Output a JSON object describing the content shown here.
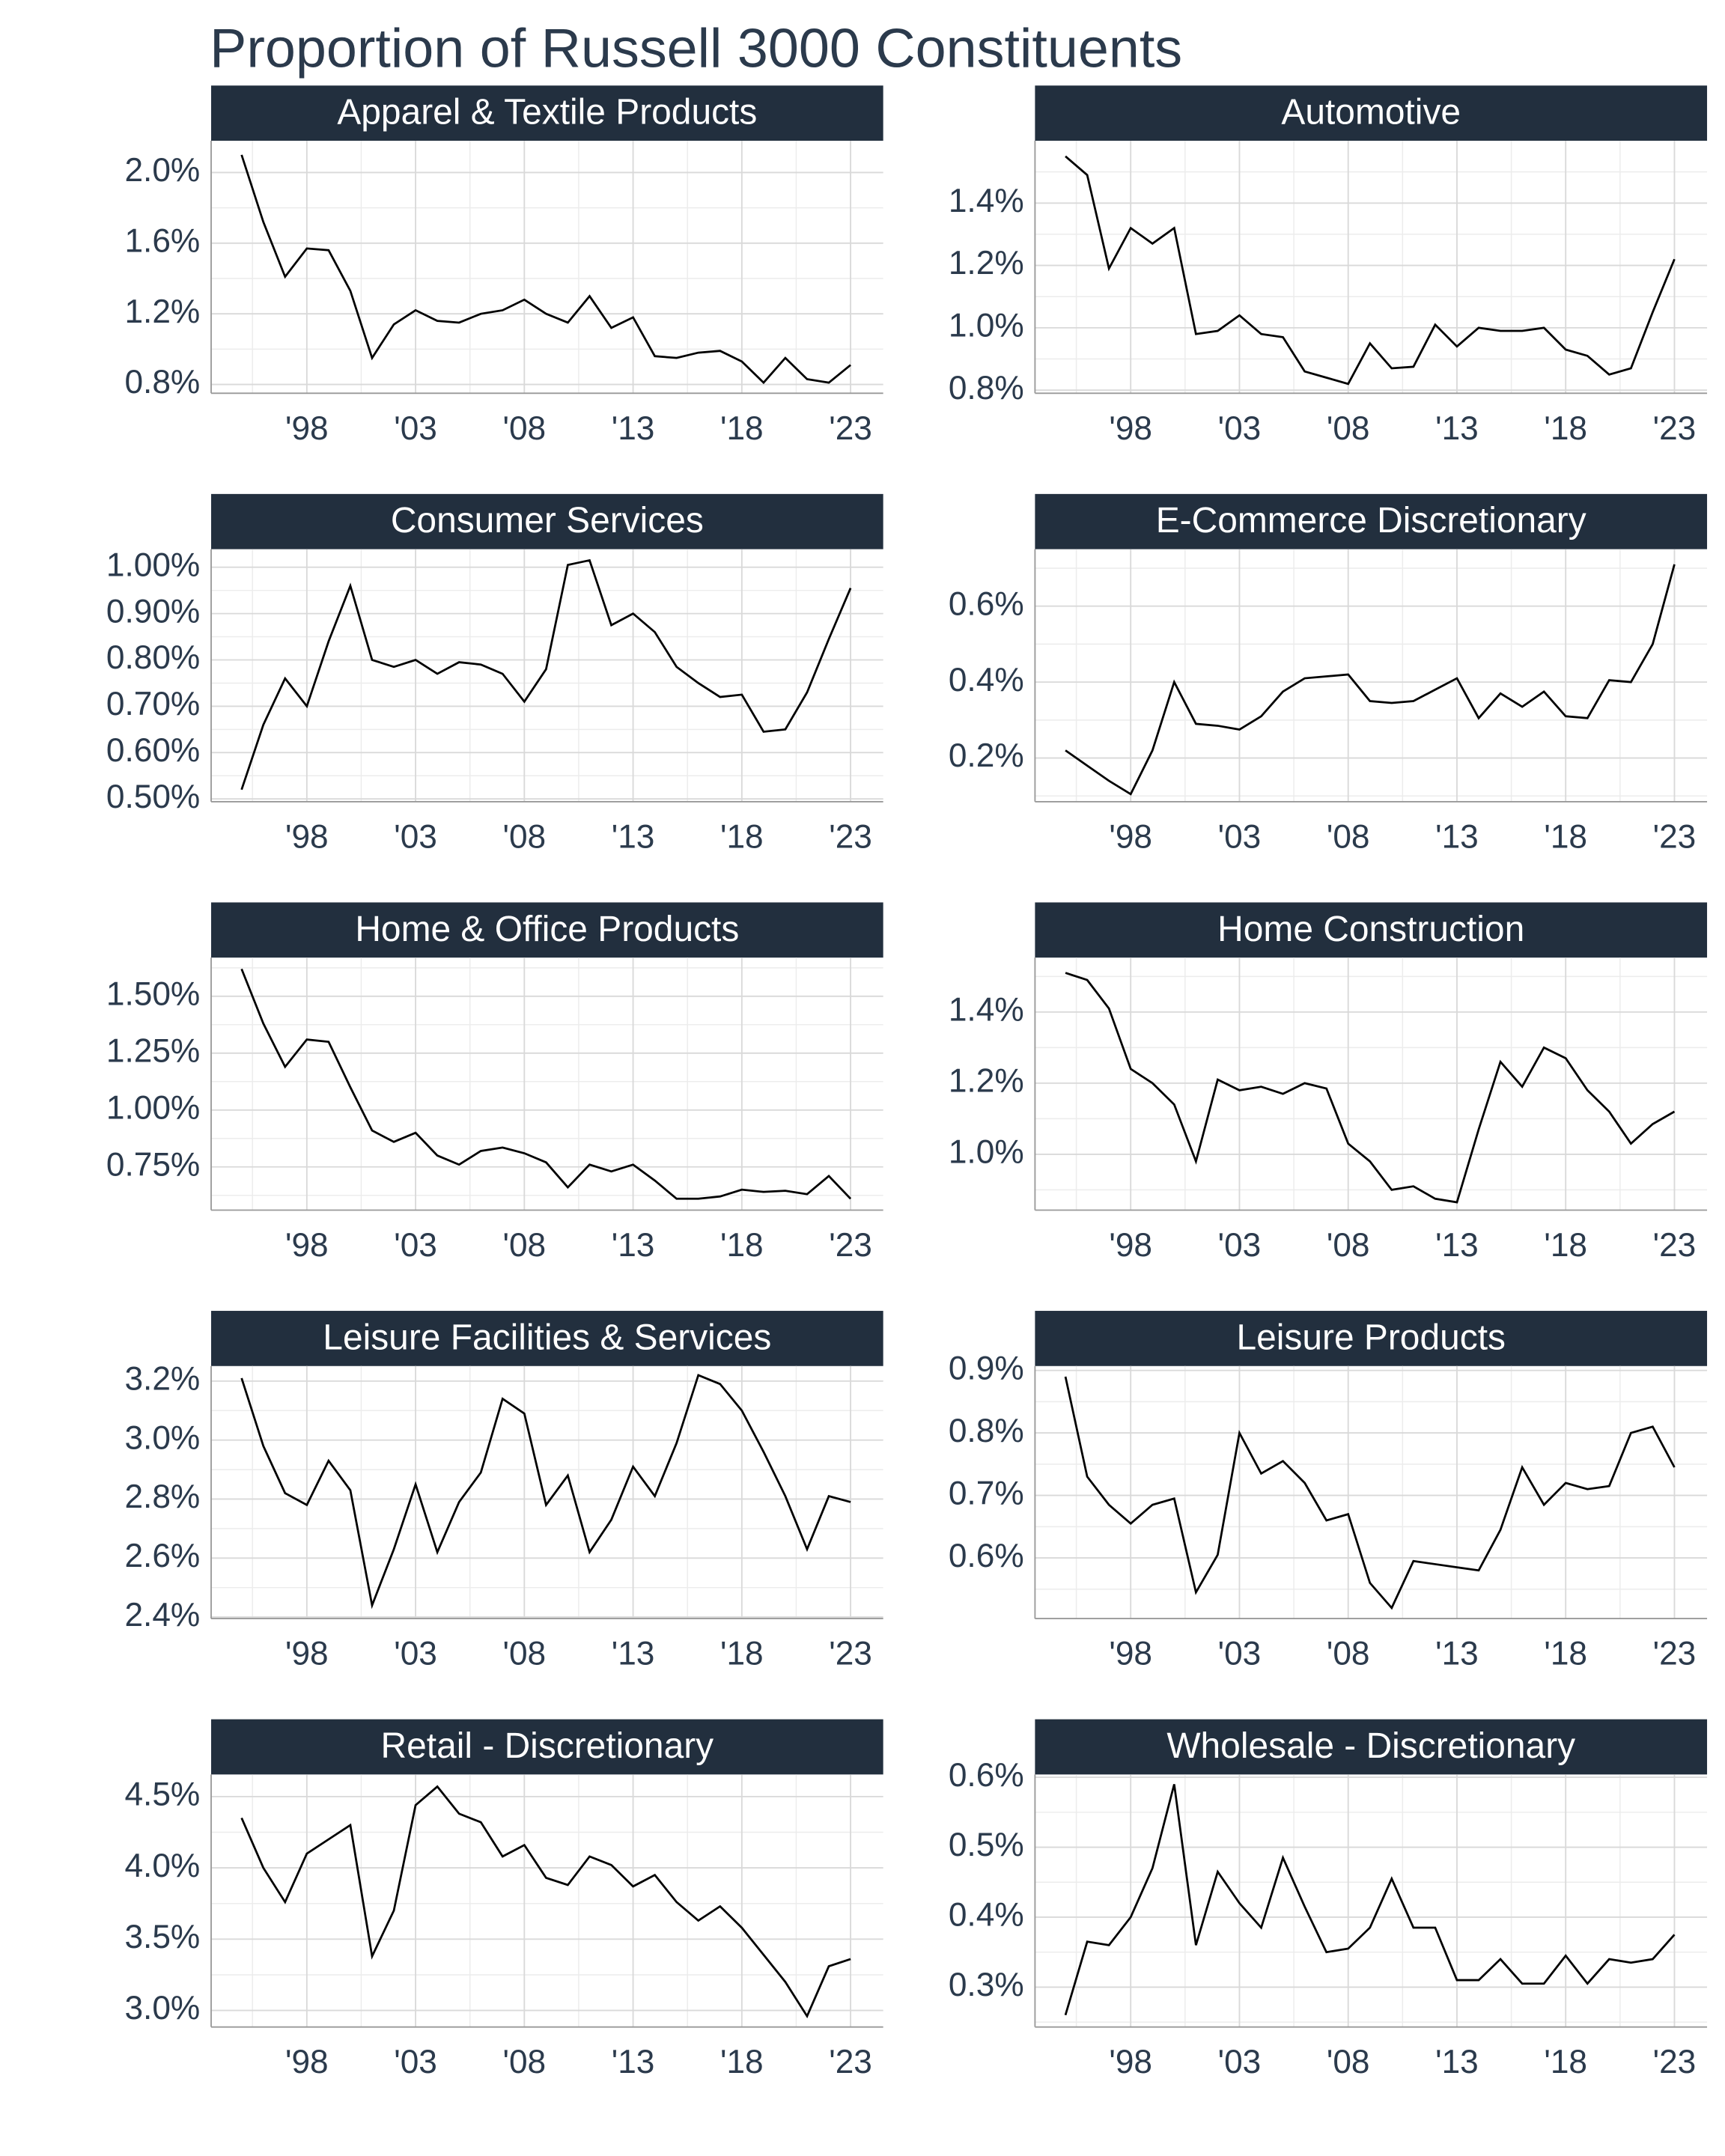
{
  "title": "Proportion of Russell 3000 Constituents",
  "chart_data": [
    {
      "type": "line",
      "title": "Apparel & Textile Products",
      "color": "#000000",
      "x": [
        1995,
        1996,
        1997,
        1998,
        1999,
        2000,
        2001,
        2002,
        2003,
        2004,
        2005,
        2006,
        2007,
        2008,
        2009,
        2010,
        2011,
        2012,
        2013,
        2014,
        2015,
        2016,
        2017,
        2018,
        2019,
        2020,
        2021,
        2022,
        2023
      ],
      "values": [
        2.1,
        1.72,
        1.41,
        1.57,
        1.56,
        1.33,
        0.95,
        1.14,
        1.22,
        1.16,
        1.15,
        1.2,
        1.22,
        1.28,
        1.2,
        1.15,
        1.3,
        1.12,
        1.18,
        0.96,
        0.95,
        0.98,
        0.99,
        0.93,
        0.81,
        0.95,
        0.83,
        0.81,
        0.91
      ],
      "xlim": [
        1993.6,
        2024.5
      ],
      "xticks": [
        {
          "value": 1998,
          "label": "'98"
        },
        {
          "value": 2003,
          "label": "'03"
        },
        {
          "value": 2008,
          "label": "'08"
        },
        {
          "value": 2013,
          "label": "'13"
        },
        {
          "value": 2018,
          "label": "'18"
        },
        {
          "value": 2023,
          "label": "'23"
        }
      ],
      "ylim": [
        0.75,
        2.18
      ],
      "yticks": [
        {
          "value": 0.8,
          "label": "0.8%"
        },
        {
          "value": 1.2,
          "label": "1.2%"
        },
        {
          "value": 1.6,
          "label": "1.6%"
        },
        {
          "value": 2.0,
          "label": "2.0%"
        }
      ]
    },
    {
      "type": "line",
      "title": "Automotive",
      "color": "#000000",
      "x": [
        1995,
        1996,
        1997,
        1998,
        1999,
        2000,
        2001,
        2002,
        2003,
        2004,
        2005,
        2006,
        2007,
        2008,
        2009,
        2010,
        2011,
        2012,
        2013,
        2014,
        2015,
        2016,
        2017,
        2018,
        2019,
        2020,
        2021,
        2022,
        2023
      ],
      "values": [
        1.55,
        1.49,
        1.19,
        1.32,
        1.27,
        1.32,
        0.98,
        0.99,
        1.04,
        0.98,
        0.97,
        0.86,
        0.84,
        0.82,
        0.95,
        0.87,
        0.875,
        1.01,
        0.94,
        1.0,
        0.99,
        0.99,
        1.0,
        0.93,
        0.91,
        0.85,
        0.87,
        1.05,
        1.22
      ],
      "xlim": [
        1993.6,
        2024.5
      ],
      "xticks": [
        {
          "value": 1998,
          "label": "'98"
        },
        {
          "value": 2003,
          "label": "'03"
        },
        {
          "value": 2008,
          "label": "'08"
        },
        {
          "value": 2013,
          "label": "'13"
        },
        {
          "value": 2018,
          "label": "'18"
        },
        {
          "value": 2023,
          "label": "'23"
        }
      ],
      "ylim": [
        0.79,
        1.6
      ],
      "yticks": [
        {
          "value": 0.8,
          "label": "0.8%"
        },
        {
          "value": 1.0,
          "label": "1.0%"
        },
        {
          "value": 1.2,
          "label": "1.2%"
        },
        {
          "value": 1.4,
          "label": "1.4%"
        }
      ]
    },
    {
      "type": "line",
      "title": "Consumer Services",
      "color": "#000000",
      "x": [
        1995,
        1996,
        1997,
        1998,
        1999,
        2000,
        2001,
        2002,
        2003,
        2004,
        2005,
        2006,
        2007,
        2008,
        2009,
        2010,
        2011,
        2012,
        2013,
        2014,
        2015,
        2016,
        2017,
        2018,
        2019,
        2020,
        2021,
        2022,
        2023
      ],
      "values": [
        0.52,
        0.66,
        0.76,
        0.7,
        0.84,
        0.96,
        0.8,
        0.785,
        0.8,
        0.77,
        0.795,
        0.79,
        0.77,
        0.71,
        0.78,
        1.005,
        1.015,
        0.875,
        0.9,
        0.86,
        0.785,
        0.75,
        0.72,
        0.725,
        0.645,
        0.65,
        0.73,
        0.845,
        0.955
      ],
      "xlim": [
        1993.6,
        2024.5
      ],
      "xticks": [
        {
          "value": 1998,
          "label": "'98"
        },
        {
          "value": 2003,
          "label": "'03"
        },
        {
          "value": 2008,
          "label": "'08"
        },
        {
          "value": 2013,
          "label": "'13"
        },
        {
          "value": 2018,
          "label": "'18"
        },
        {
          "value": 2023,
          "label": "'23"
        }
      ],
      "ylim": [
        0.494,
        1.039
      ],
      "yticks": [
        {
          "value": 0.5,
          "label": "0.50%"
        },
        {
          "value": 0.6,
          "label": "0.60%"
        },
        {
          "value": 0.7,
          "label": "0.70%"
        },
        {
          "value": 0.8,
          "label": "0.80%"
        },
        {
          "value": 0.9,
          "label": "0.90%"
        },
        {
          "value": 1.0,
          "label": "1.00%"
        }
      ]
    },
    {
      "type": "line",
      "title": "E-Commerce Discretionary",
      "color": "#000000",
      "x": [
        1995,
        1996,
        1997,
        1998,
        1999,
        2000,
        2001,
        2002,
        2003,
        2004,
        2005,
        2006,
        2007,
        2008,
        2009,
        2010,
        2011,
        2012,
        2013,
        2014,
        2015,
        2016,
        2017,
        2018,
        2019,
        2020,
        2021,
        2022,
        2023
      ],
      "values": [
        0.22,
        0.18,
        0.14,
        0.105,
        0.22,
        0.4,
        0.29,
        0.285,
        0.275,
        0.31,
        0.375,
        0.41,
        0.415,
        0.42,
        0.35,
        0.345,
        0.35,
        0.38,
        0.41,
        0.305,
        0.37,
        0.335,
        0.375,
        0.31,
        0.305,
        0.405,
        0.4,
        0.5,
        0.71
      ],
      "xlim": [
        1993.6,
        2024.5
      ],
      "xticks": [
        {
          "value": 1998,
          "label": "'98"
        },
        {
          "value": 2003,
          "label": "'03"
        },
        {
          "value": 2008,
          "label": "'08"
        },
        {
          "value": 2013,
          "label": "'13"
        },
        {
          "value": 2018,
          "label": "'18"
        },
        {
          "value": 2023,
          "label": "'23"
        }
      ],
      "ylim": [
        0.085,
        0.75
      ],
      "yticks": [
        {
          "value": 0.2,
          "label": "0.2%"
        },
        {
          "value": 0.4,
          "label": "0.4%"
        },
        {
          "value": 0.6,
          "label": "0.6%"
        }
      ]
    },
    {
      "type": "line",
      "title": "Home & Office Products",
      "color": "#000000",
      "x": [
        1995,
        1996,
        1997,
        1998,
        1999,
        2000,
        2001,
        2002,
        2003,
        2004,
        2005,
        2006,
        2007,
        2008,
        2009,
        2010,
        2011,
        2012,
        2013,
        2014,
        2015,
        2016,
        2017,
        2018,
        2019,
        2020,
        2021,
        2022,
        2023
      ],
      "values": [
        1.62,
        1.38,
        1.19,
        1.31,
        1.3,
        1.1,
        0.91,
        0.86,
        0.9,
        0.8,
        0.76,
        0.82,
        0.835,
        0.81,
        0.77,
        0.66,
        0.76,
        0.73,
        0.76,
        0.69,
        0.61,
        0.61,
        0.62,
        0.65,
        0.64,
        0.645,
        0.63,
        0.71,
        0.61
      ],
      "xlim": [
        1993.6,
        2024.5
      ],
      "xticks": [
        {
          "value": 1998,
          "label": "'98"
        },
        {
          "value": 2003,
          "label": "'03"
        },
        {
          "value": 2008,
          "label": "'08"
        },
        {
          "value": 2013,
          "label": "'13"
        },
        {
          "value": 2018,
          "label": "'18"
        },
        {
          "value": 2023,
          "label": "'23"
        }
      ],
      "ylim": [
        0.56,
        1.67
      ],
      "yticks": [
        {
          "value": 0.75,
          "label": "0.75%"
        },
        {
          "value": 1.0,
          "label": "1.00%"
        },
        {
          "value": 1.25,
          "label": "1.25%"
        },
        {
          "value": 1.5,
          "label": "1.50%"
        }
      ]
    },
    {
      "type": "line",
      "title": "Home Construction",
      "color": "#000000",
      "x": [
        1995,
        1996,
        1997,
        1998,
        1999,
        2000,
        2001,
        2002,
        2003,
        2004,
        2005,
        2006,
        2007,
        2008,
        2009,
        2010,
        2011,
        2012,
        2013,
        2014,
        2015,
        2016,
        2017,
        2018,
        2019,
        2020,
        2021,
        2022,
        2023
      ],
      "values": [
        1.51,
        1.49,
        1.41,
        1.24,
        1.2,
        1.14,
        0.98,
        1.21,
        1.18,
        1.19,
        1.17,
        1.2,
        1.185,
        1.03,
        0.98,
        0.9,
        0.91,
        0.875,
        0.865,
        1.07,
        1.26,
        1.19,
        1.3,
        1.27,
        1.18,
        1.12,
        1.03,
        1.085,
        1.12
      ],
      "xlim": [
        1993.6,
        2024.5
      ],
      "xticks": [
        {
          "value": 1998,
          "label": "'98"
        },
        {
          "value": 2003,
          "label": "'03"
        },
        {
          "value": 2008,
          "label": "'08"
        },
        {
          "value": 2013,
          "label": "'13"
        },
        {
          "value": 2018,
          "label": "'18"
        },
        {
          "value": 2023,
          "label": "'23"
        }
      ],
      "ylim": [
        0.843,
        1.553
      ],
      "yticks": [
        {
          "value": 1.0,
          "label": "1.0%"
        },
        {
          "value": 1.2,
          "label": "1.2%"
        },
        {
          "value": 1.4,
          "label": "1.4%"
        }
      ]
    },
    {
      "type": "line",
      "title": "Leisure Facilities & Services",
      "color": "#000000",
      "x": [
        1995,
        1996,
        1997,
        1998,
        1999,
        2000,
        2001,
        2002,
        2003,
        2004,
        2005,
        2006,
        2007,
        2008,
        2009,
        2010,
        2011,
        2012,
        2013,
        2014,
        2015,
        2016,
        2017,
        2018,
        2019,
        2020,
        2021,
        2022,
        2023
      ],
      "values": [
        3.21,
        2.98,
        2.82,
        2.78,
        2.93,
        2.83,
        2.44,
        2.63,
        2.85,
        2.62,
        2.79,
        2.89,
        3.14,
        3.09,
        2.78,
        2.88,
        2.62,
        2.73,
        2.91,
        2.81,
        2.99,
        3.22,
        3.19,
        3.1,
        2.96,
        2.81,
        2.63,
        2.81,
        2.79
      ],
      "xlim": [
        1993.6,
        2024.5
      ],
      "xticks": [
        {
          "value": 1998,
          "label": "'98"
        },
        {
          "value": 2003,
          "label": "'03"
        },
        {
          "value": 2008,
          "label": "'08"
        },
        {
          "value": 2013,
          "label": "'13"
        },
        {
          "value": 2018,
          "label": "'18"
        },
        {
          "value": 2023,
          "label": "'23"
        }
      ],
      "ylim": [
        2.395,
        3.251
      ],
      "yticks": [
        {
          "value": 2.4,
          "label": "2.4%"
        },
        {
          "value": 2.6,
          "label": "2.6%"
        },
        {
          "value": 2.8,
          "label": "2.8%"
        },
        {
          "value": 3.0,
          "label": "3.0%"
        },
        {
          "value": 3.2,
          "label": "3.2%"
        }
      ]
    },
    {
      "type": "line",
      "title": "Leisure Products",
      "color": "#000000",
      "x": [
        1995,
        1996,
        1997,
        1998,
        1999,
        2000,
        2001,
        2002,
        2003,
        2004,
        2005,
        2006,
        2007,
        2008,
        2009,
        2010,
        2011,
        2012,
        2013,
        2014,
        2015,
        2016,
        2017,
        2018,
        2019,
        2020,
        2021,
        2022,
        2023
      ],
      "values": [
        0.89,
        0.73,
        0.685,
        0.655,
        0.685,
        0.695,
        0.545,
        0.605,
        0.8,
        0.735,
        0.755,
        0.72,
        0.66,
        0.67,
        0.56,
        0.52,
        0.595,
        0.59,
        0.585,
        0.58,
        0.645,
        0.745,
        0.685,
        0.72,
        0.71,
        0.715,
        0.8,
        0.81,
        0.745
      ],
      "xlim": [
        1993.6,
        2024.5
      ],
      "xticks": [
        {
          "value": 1998,
          "label": "'98"
        },
        {
          "value": 2003,
          "label": "'03"
        },
        {
          "value": 2008,
          "label": "'08"
        },
        {
          "value": 2013,
          "label": "'13"
        },
        {
          "value": 2018,
          "label": "'18"
        },
        {
          "value": 2023,
          "label": "'23"
        }
      ],
      "ylim": [
        0.503,
        0.907
      ],
      "yticks": [
        {
          "value": 0.6,
          "label": "0.6%"
        },
        {
          "value": 0.7,
          "label": "0.7%"
        },
        {
          "value": 0.8,
          "label": "0.8%"
        },
        {
          "value": 0.9,
          "label": "0.9%"
        }
      ]
    },
    {
      "type": "line",
      "title": "Retail - Discretionary",
      "color": "#000000",
      "x": [
        1995,
        1996,
        1997,
        1998,
        1999,
        2000,
        2001,
        2002,
        2003,
        2004,
        2005,
        2006,
        2007,
        2008,
        2009,
        2010,
        2011,
        2012,
        2013,
        2014,
        2015,
        2016,
        2017,
        2018,
        2019,
        2020,
        2021,
        2022,
        2023
      ],
      "values": [
        4.35,
        4.0,
        3.76,
        4.1,
        4.2,
        4.3,
        3.38,
        3.7,
        4.44,
        4.57,
        4.38,
        4.32,
        4.08,
        4.16,
        3.93,
        3.88,
        4.08,
        4.02,
        3.87,
        3.95,
        3.76,
        3.63,
        3.73,
        3.58,
        3.39,
        3.2,
        2.96,
        3.31,
        3.36
      ],
      "xlim": [
        1993.6,
        2024.5
      ],
      "xticks": [
        {
          "value": 1998,
          "label": "'98"
        },
        {
          "value": 2003,
          "label": "'03"
        },
        {
          "value": 2008,
          "label": "'08"
        },
        {
          "value": 2013,
          "label": "'13"
        },
        {
          "value": 2018,
          "label": "'18"
        },
        {
          "value": 2023,
          "label": "'23"
        }
      ],
      "ylim": [
        2.884,
        4.655
      ],
      "yticks": [
        {
          "value": 3.0,
          "label": "3.0%"
        },
        {
          "value": 3.5,
          "label": "3.5%"
        },
        {
          "value": 4.0,
          "label": "4.0%"
        },
        {
          "value": 4.5,
          "label": "4.5%"
        }
      ]
    },
    {
      "type": "line",
      "title": "Wholesale - Discretionary",
      "color": "#000000",
      "x": [
        1995,
        1996,
        1997,
        1998,
        1999,
        2000,
        2001,
        2002,
        2003,
        2004,
        2005,
        2006,
        2007,
        2008,
        2009,
        2010,
        2011,
        2012,
        2013,
        2014,
        2015,
        2016,
        2017,
        2018,
        2019,
        2020,
        2021,
        2022,
        2023
      ],
      "values": [
        0.26,
        0.365,
        0.36,
        0.4,
        0.47,
        0.59,
        0.36,
        0.465,
        0.42,
        0.385,
        0.485,
        0.415,
        0.35,
        0.355,
        0.385,
        0.455,
        0.385,
        0.385,
        0.31,
        0.31,
        0.34,
        0.305,
        0.305,
        0.345,
        0.305,
        0.34,
        0.335,
        0.34,
        0.375
      ],
      "xlim": [
        1993.6,
        2024.5
      ],
      "xticks": [
        {
          "value": 1998,
          "label": "'98"
        },
        {
          "value": 2003,
          "label": "'03"
        },
        {
          "value": 2008,
          "label": "'08"
        },
        {
          "value": 2013,
          "label": "'13"
        },
        {
          "value": 2018,
          "label": "'18"
        },
        {
          "value": 2023,
          "label": "'23"
        }
      ],
      "ylim": [
        0.243,
        0.604
      ],
      "yticks": [
        {
          "value": 0.3,
          "label": "0.3%"
        },
        {
          "value": 0.4,
          "label": "0.4%"
        },
        {
          "value": 0.5,
          "label": "0.5%"
        },
        {
          "value": 0.6,
          "label": "0.6%"
        }
      ]
    }
  ]
}
